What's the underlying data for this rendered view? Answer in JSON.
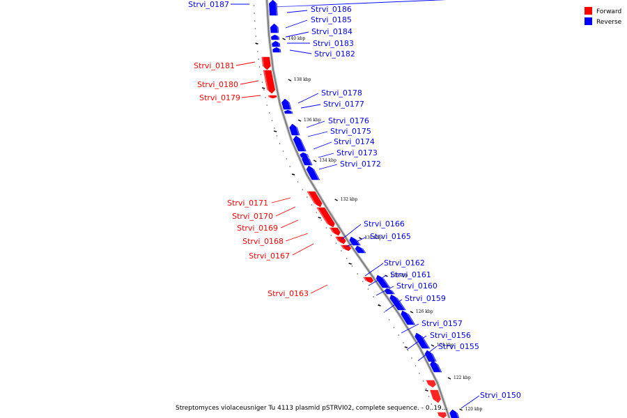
{
  "legend": [
    {
      "label": "Forward",
      "color": "#ff0000"
    },
    {
      "label": "Reverse",
      "color": "#0000ff"
    }
  ],
  "caption": "Streptomyces violaceusniger Tu 4113 plasmid pSTRVI02, complete sequence. - 0..19...",
  "colors": {
    "forward": "#ff0000",
    "reverse": "#0000ff",
    "backbone": "#888888"
  },
  "kbp_ticks": [
    "140 kbp",
    "138 kbp",
    "136 kbp",
    "134 kbp",
    "132 kbp",
    "130 kbp",
    "128 kbp",
    "126 kbp",
    "124 kbp",
    "122 kbp",
    "120 kbp"
  ],
  "genes": [
    {
      "name": "Strvi_0187",
      "strand": "reverse"
    },
    {
      "name": "Strvi_0186",
      "strand": "reverse"
    },
    {
      "name": "Strvi_0185",
      "strand": "reverse"
    },
    {
      "name": "Strvi_0184",
      "strand": "reverse"
    },
    {
      "name": "Strvi_0183",
      "strand": "reverse"
    },
    {
      "name": "Strvi_0182",
      "strand": "reverse"
    },
    {
      "name": "Strvi_0181",
      "strand": "forward"
    },
    {
      "name": "Strvi_0180",
      "strand": "forward"
    },
    {
      "name": "Strvi_0179",
      "strand": "forward"
    },
    {
      "name": "Strvi_0178",
      "strand": "reverse"
    },
    {
      "name": "Strvi_0177",
      "strand": "reverse"
    },
    {
      "name": "Strvi_0176",
      "strand": "reverse"
    },
    {
      "name": "Strvi_0175",
      "strand": "reverse"
    },
    {
      "name": "Strvi_0174",
      "strand": "reverse"
    },
    {
      "name": "Strvi_0173",
      "strand": "reverse"
    },
    {
      "name": "Strvi_0172",
      "strand": "reverse"
    },
    {
      "name": "Strvi_0171",
      "strand": "forward"
    },
    {
      "name": "Strvi_0170",
      "strand": "forward"
    },
    {
      "name": "Strvi_0169",
      "strand": "forward"
    },
    {
      "name": "Strvi_0168",
      "strand": "forward"
    },
    {
      "name": "Strvi_0167",
      "strand": "forward"
    },
    {
      "name": "Strvi_0166",
      "strand": "reverse"
    },
    {
      "name": "Strvi_0165",
      "strand": "reverse"
    },
    {
      "name": "Strvi_0163",
      "strand": "forward"
    },
    {
      "name": "Strvi_0162",
      "strand": "reverse"
    },
    {
      "name": "Strvi_0161",
      "strand": "reverse"
    },
    {
      "name": "Strvi_0160",
      "strand": "reverse"
    },
    {
      "name": "Strvi_0159",
      "strand": "reverse"
    },
    {
      "name": "Strvi_0157",
      "strand": "reverse"
    },
    {
      "name": "Strvi_0156",
      "strand": "reverse"
    },
    {
      "name": "Strvi_0155",
      "strand": "reverse"
    },
    {
      "name": "Strvi_0150",
      "strand": "reverse"
    }
  ]
}
